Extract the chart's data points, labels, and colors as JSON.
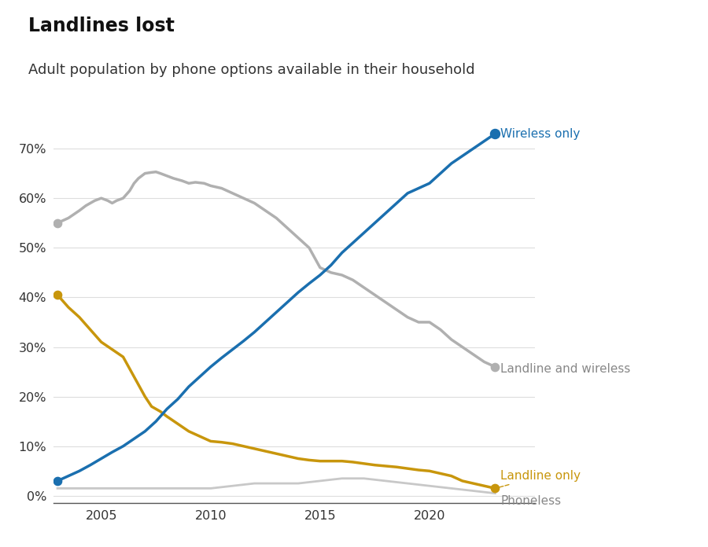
{
  "title": "Landlines lost",
  "subtitle": "Adult population by phone options available in their household",
  "title_fontsize": 17,
  "subtitle_fontsize": 13,
  "background_color": "#ffffff",
  "wireless_only": {
    "x": [
      2003,
      2003.5,
      2004,
      2004.5,
      2005,
      2005.5,
      2006,
      2006.5,
      2007,
      2007.5,
      2008,
      2008.5,
      2009,
      2009.5,
      2010,
      2010.5,
      2011,
      2011.5,
      2012,
      2012.5,
      2013,
      2013.5,
      2014,
      2014.5,
      2015,
      2015.5,
      2016,
      2016.5,
      2017,
      2017.5,
      2018,
      2018.5,
      2019,
      2019.5,
      2020,
      2020.5,
      2021,
      2021.5,
      2022,
      2022.5,
      2023
    ],
    "y": [
      3.0,
      4.0,
      5.0,
      6.2,
      7.5,
      8.8,
      10.0,
      11.5,
      13.0,
      15.0,
      17.5,
      19.5,
      22.0,
      24.0,
      26.0,
      27.8,
      29.5,
      31.2,
      33.0,
      35.0,
      37.0,
      39.0,
      41.0,
      42.8,
      44.5,
      46.5,
      49.0,
      51.0,
      53.0,
      55.0,
      57.0,
      59.0,
      61.0,
      62.0,
      63.0,
      65.0,
      67.0,
      68.5,
      70.0,
      71.5,
      73.0
    ],
    "color": "#1a6faf",
    "label": "Wireless only",
    "lw": 2.5
  },
  "landline_wireless": {
    "x": [
      2003,
      2003.5,
      2004,
      2004.3,
      2004.7,
      2005,
      2005.3,
      2005.5,
      2005.7,
      2006,
      2006.3,
      2006.5,
      2006.7,
      2007,
      2007.3,
      2007.5,
      2007.7,
      2008,
      2008.3,
      2008.7,
      2009,
      2009.3,
      2009.7,
      2010,
      2010.5,
      2011,
      2011.5,
      2012,
      2012.5,
      2013,
      2013.5,
      2014,
      2014.5,
      2015,
      2015.5,
      2016,
      2016.5,
      2017,
      2017.5,
      2018,
      2018.5,
      2019,
      2019.5,
      2020,
      2020.5,
      2021,
      2021.5,
      2022,
      2022.5,
      2023
    ],
    "y": [
      55.0,
      56.0,
      57.5,
      58.5,
      59.5,
      60.0,
      59.5,
      59.0,
      59.5,
      60.0,
      61.5,
      63.0,
      64.0,
      65.0,
      65.2,
      65.3,
      65.0,
      64.5,
      64.0,
      63.5,
      63.0,
      63.2,
      63.0,
      62.5,
      62.0,
      61.0,
      60.0,
      59.0,
      57.5,
      56.0,
      54.0,
      52.0,
      50.0,
      46.0,
      45.0,
      44.5,
      43.5,
      42.0,
      40.5,
      39.0,
      37.5,
      36.0,
      35.0,
      35.0,
      33.5,
      31.5,
      30.0,
      28.5,
      27.0,
      26.0
    ],
    "color": "#b0b0b0",
    "label": "Landline and wireless",
    "lw": 2.5
  },
  "landline_only": {
    "x": [
      2003,
      2003.5,
      2004,
      2004.5,
      2005,
      2005.5,
      2006,
      2006.5,
      2007,
      2007.3,
      2007.5,
      2007.7,
      2008,
      2008.5,
      2009,
      2009.5,
      2010,
      2010.5,
      2011,
      2011.5,
      2012,
      2012.5,
      2013,
      2013.5,
      2014,
      2014.5,
      2015,
      2015.5,
      2016,
      2016.5,
      2017,
      2017.5,
      2018,
      2018.5,
      2019,
      2019.5,
      2020,
      2020.5,
      2021,
      2021.5,
      2022,
      2022.5,
      2023
    ],
    "y": [
      40.5,
      38.0,
      36.0,
      33.5,
      31.0,
      29.5,
      28.0,
      24.0,
      20.0,
      18.0,
      17.5,
      17.0,
      16.0,
      14.5,
      13.0,
      12.0,
      11.0,
      10.8,
      10.5,
      10.0,
      9.5,
      9.0,
      8.5,
      8.0,
      7.5,
      7.2,
      7.0,
      7.0,
      7.0,
      6.8,
      6.5,
      6.2,
      6.0,
      5.8,
      5.5,
      5.2,
      5.0,
      4.5,
      4.0,
      3.0,
      2.5,
      2.0,
      1.5
    ],
    "color": "#c8960c",
    "label": "Landline only",
    "lw": 2.5
  },
  "phoneless": {
    "x": [
      2003,
      2004,
      2005,
      2006,
      2007,
      2008,
      2009,
      2010,
      2011,
      2012,
      2013,
      2014,
      2015,
      2016,
      2017,
      2018,
      2019,
      2020,
      2021,
      2022,
      2023
    ],
    "y": [
      1.5,
      1.5,
      1.5,
      1.5,
      1.5,
      1.5,
      1.5,
      1.5,
      2.0,
      2.5,
      2.5,
      2.5,
      3.0,
      3.5,
      3.5,
      3.0,
      2.5,
      2.0,
      1.5,
      1.0,
      0.5
    ],
    "color": "#c8c8c8",
    "label": "Phoneless",
    "lw": 2.0
  },
  "ylim": [
    -1.5,
    79
  ],
  "xlim": [
    2002.8,
    2024.8
  ],
  "yticks": [
    0,
    10,
    20,
    30,
    40,
    50,
    60,
    70
  ],
  "xticks": [
    2005,
    2010,
    2015,
    2020
  ],
  "grid_color": "#dddddd"
}
